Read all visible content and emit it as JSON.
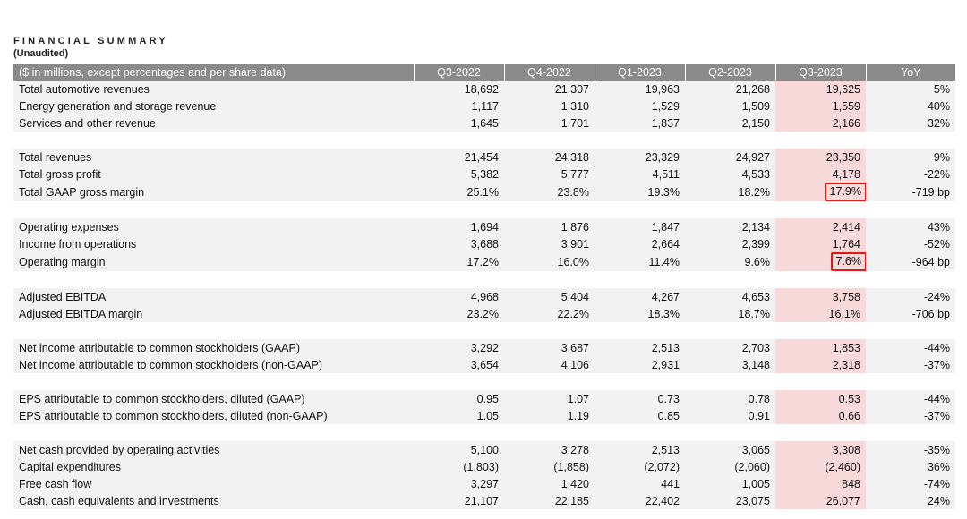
{
  "header": {
    "title": "FINANCIAL SUMMARY",
    "subtitle": "(Unaudited)"
  },
  "table": {
    "columns": [
      "($ in millions, except percentages and per share data)",
      "Q3-2022",
      "Q4-2022",
      "Q1-2023",
      "Q2-2023",
      "Q3-2023",
      "YoY"
    ],
    "rows": [
      {
        "label": "Total automotive revenues",
        "values": [
          "18,692",
          "21,307",
          "19,963",
          "21,268",
          "19,625",
          "5%"
        ]
      },
      {
        "label": "Energy generation and storage revenue",
        "values": [
          "1,117",
          "1,310",
          "1,529",
          "1,509",
          "1,559",
          "40%"
        ]
      },
      {
        "label": "Services and other revenue",
        "values": [
          "1,645",
          "1,701",
          "1,837",
          "2,150",
          "2,166",
          "32%"
        ]
      },
      {
        "label": "Total revenues",
        "values": [
          "21,454",
          "24,318",
          "23,329",
          "24,927",
          "23,350",
          "9%"
        ]
      },
      {
        "label": "Total gross profit",
        "values": [
          "5,382",
          "5,777",
          "4,511",
          "4,533",
          "4,178",
          "-22%"
        ]
      },
      {
        "label": "Total GAAP gross margin",
        "values": [
          "25.1%",
          "23.8%",
          "19.3%",
          "18.2%",
          "17.9%",
          "-719 bp"
        ]
      },
      {
        "label": "Operating expenses",
        "values": [
          "1,694",
          "1,876",
          "1,847",
          "2,134",
          "2,414",
          "43%"
        ]
      },
      {
        "label": "Income from operations",
        "values": [
          "3,688",
          "3,901",
          "2,664",
          "2,399",
          "1,764",
          "-52%"
        ]
      },
      {
        "label": "Operating margin",
        "values": [
          "17.2%",
          "16.0%",
          "11.4%",
          "9.6%",
          "7.6%",
          "-964 bp"
        ]
      },
      {
        "label": "Adjusted EBITDA",
        "values": [
          "4,968",
          "5,404",
          "4,267",
          "4,653",
          "3,758",
          "-24%"
        ]
      },
      {
        "label": "Adjusted EBITDA margin",
        "values": [
          "23.2%",
          "22.2%",
          "18.3%",
          "18.7%",
          "16.1%",
          "-706 bp"
        ]
      },
      {
        "label": "Net income attributable to common stockholders (GAAP)",
        "values": [
          "3,292",
          "3,687",
          "2,513",
          "2,703",
          "1,853",
          "-44%"
        ]
      },
      {
        "label": "Net income attributable to common stockholders (non-GAAP)",
        "values": [
          "3,654",
          "4,106",
          "2,931",
          "3,148",
          "2,318",
          "-37%"
        ]
      },
      {
        "label": "EPS attributable to common stockholders, diluted (GAAP)",
        "values": [
          "0.95",
          "1.07",
          "0.73",
          "0.78",
          "0.53",
          "-44%"
        ]
      },
      {
        "label": "EPS attributable to common stockholders, diluted (non-GAAP)",
        "values": [
          "1.05",
          "1.19",
          "0.85",
          "0.91",
          "0.66",
          "-37%"
        ]
      },
      {
        "label": "Net cash provided by operating activities",
        "values": [
          "5,100",
          "3,278",
          "2,513",
          "3,065",
          "3,308",
          "-35%"
        ]
      },
      {
        "label": "Capital expenditures",
        "values": [
          "(1,803)",
          "(1,858)",
          "(2,072)",
          "(2,060)",
          "(2,460)",
          "36%"
        ]
      },
      {
        "label": "Free cash flow",
        "values": [
          "3,297",
          "1,420",
          "441",
          "1,005",
          "848",
          "-74%"
        ]
      },
      {
        "label": "Cash, cash equivalents and investments",
        "values": [
          "21,107",
          "22,185",
          "22,402",
          "23,075",
          "26,077",
          "24%"
        ]
      }
    ]
  },
  "colors": {
    "header_bg": "#8a8a8a",
    "row_bg": "#f2f2f2",
    "highlight_col_bg": "#f7d9d9",
    "annotation_box": "#e01818"
  }
}
